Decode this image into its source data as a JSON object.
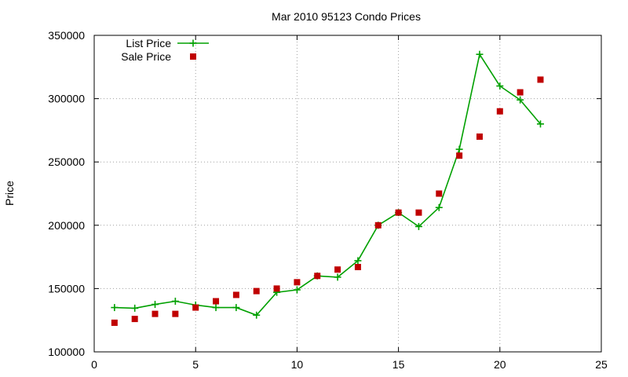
{
  "chart_data": {
    "type": "line",
    "title": "Mar 2010 95123 Condo Prices",
    "xlabel": "",
    "ylabel": "Price",
    "xlim": [
      0,
      25
    ],
    "ylim": [
      100000,
      350000
    ],
    "x_ticks": [
      0,
      5,
      10,
      15,
      20,
      25
    ],
    "y_ticks": [
      100000,
      150000,
      200000,
      250000,
      300000,
      350000
    ],
    "grid": true,
    "legend_position": "top-left",
    "series": [
      {
        "name": "List Price",
        "style": "line-with-plus-markers",
        "color": "#00a000",
        "x": [
          1,
          2,
          3,
          4,
          5,
          6,
          7,
          8,
          9,
          10,
          11,
          12,
          13,
          14,
          15,
          16,
          17,
          18,
          19,
          20,
          21,
          22
        ],
        "y": [
          135000,
          134500,
          137500,
          140000,
          137000,
          135000,
          135000,
          129000,
          147000,
          149000,
          160000,
          159000,
          172000,
          200000,
          210000,
          199000,
          214000,
          260000,
          335000,
          310000,
          299000,
          280000
        ]
      },
      {
        "name": "Sale Price",
        "style": "square-markers",
        "color": "#c00000",
        "x": [
          1,
          2,
          3,
          4,
          5,
          6,
          7,
          8,
          9,
          10,
          11,
          12,
          13,
          14,
          15,
          16,
          17,
          18,
          19,
          20,
          21,
          22
        ],
        "y": [
          123000,
          126000,
          130000,
          130000,
          135000,
          140000,
          145000,
          148000,
          150000,
          155000,
          160000,
          165000,
          167000,
          200000,
          210000,
          210000,
          225000,
          255000,
          270000,
          290000,
          305000,
          315000
        ]
      }
    ]
  }
}
